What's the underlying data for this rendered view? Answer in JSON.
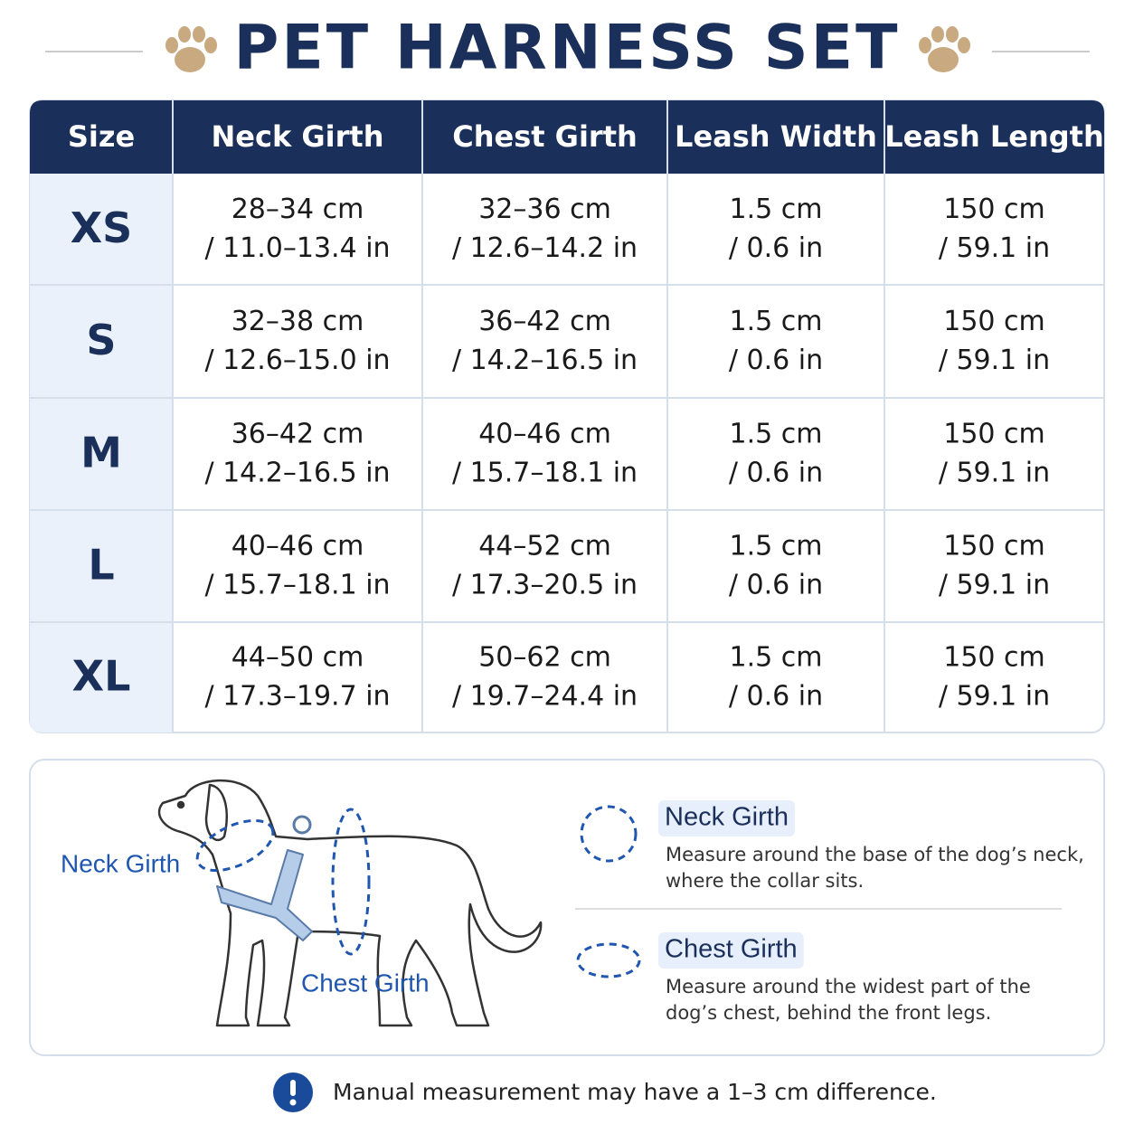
{
  "header": {
    "title": "PET HARNESS SET"
  },
  "table": {
    "columns": [
      "Size",
      "Neck Girth",
      "Chest Girth",
      "Leash Width",
      "Leash Length"
    ],
    "rows": [
      [
        "XS",
        [
          "28–34 cm",
          "/ 11.0–13.4 in"
        ],
        [
          "32–36 cm",
          "/ 12.6–14.2 in"
        ],
        [
          "1.5 cm",
          "/ 0.6 in"
        ],
        [
          "150 cm",
          "/ 59.1 in"
        ]
      ],
      [
        "S",
        [
          "32–38 cm",
          "/ 12.6–15.0 in"
        ],
        [
          "36–42 cm",
          "/ 14.2–16.5 in"
        ],
        [
          "1.5 cm",
          "/ 0.6 in"
        ],
        [
          "150 cm",
          "/ 59.1 in"
        ]
      ],
      [
        "M",
        [
          "36–42 cm",
          "/ 14.2–16.5 in"
        ],
        [
          "40–46 cm",
          "/ 15.7–18.1 in"
        ],
        [
          "1.5 cm",
          "/ 0.6 in"
        ],
        [
          "150 cm",
          "/ 59.1 in"
        ]
      ],
      [
        "L",
        [
          "40–46 cm",
          "/ 15.7–18.1 in"
        ],
        [
          "44–52 cm",
          "/ 17.3–20.5 in"
        ],
        [
          "1.5 cm",
          "/ 0.6 in"
        ],
        [
          "150 cm",
          "/ 59.1 in"
        ]
      ],
      [
        "XL",
        [
          "44–50 cm",
          "/ 17.3–19.7 in"
        ],
        [
          "50–62 cm",
          "/ 19.7–24.4 in"
        ],
        [
          "1.5 cm",
          "/ 0.6 in"
        ],
        [
          "150 cm",
          "/ 59.1 in"
        ]
      ]
    ]
  },
  "diagram": {
    "neck_label": "Neck Girth",
    "chest_label": "Chest Girth"
  },
  "guide": [
    {
      "title": "Neck Girth",
      "lines": [
        "Measure around the base of the dog’s neck,",
        "where the collar sits."
      ]
    },
    {
      "title": "Chest Girth",
      "lines": [
        "Measure around the widest part of the",
        "dog’s chest, behind the front legs."
      ]
    }
  ],
  "note": "Manual measurement may have a 1–3 cm difference."
}
